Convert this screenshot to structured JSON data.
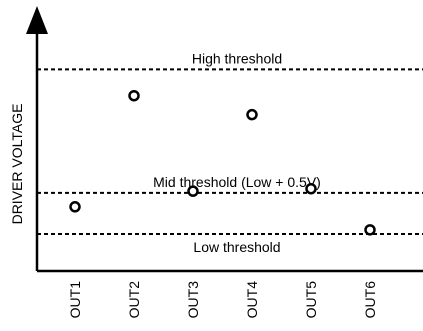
{
  "chart_data": {
    "type": "scatter",
    "title": "",
    "xlabel": "",
    "ylabel": "DRIVER VOLTAGE",
    "categories": [
      "OUT1",
      "OUT2",
      "OUT3",
      "OUT4",
      "OUT5",
      "OUT6"
    ],
    "series": [
      {
        "values": [
          0.33,
          1.68,
          0.52,
          1.45,
          0.55,
          0.05
        ]
      }
    ],
    "thresholds": [
      {
        "label": "High threshold",
        "value": 2.0
      },
      {
        "label": "Mid threshold (Low + 0.5V)",
        "value": 0.5
      },
      {
        "label": "Low threshold",
        "value": 0.0
      }
    ],
    "ylim": [
      -0.45,
      2.6
    ],
    "grid": false,
    "colors": {
      "axis": "#000000",
      "marker": "#000000",
      "threshold": "#000000"
    }
  }
}
